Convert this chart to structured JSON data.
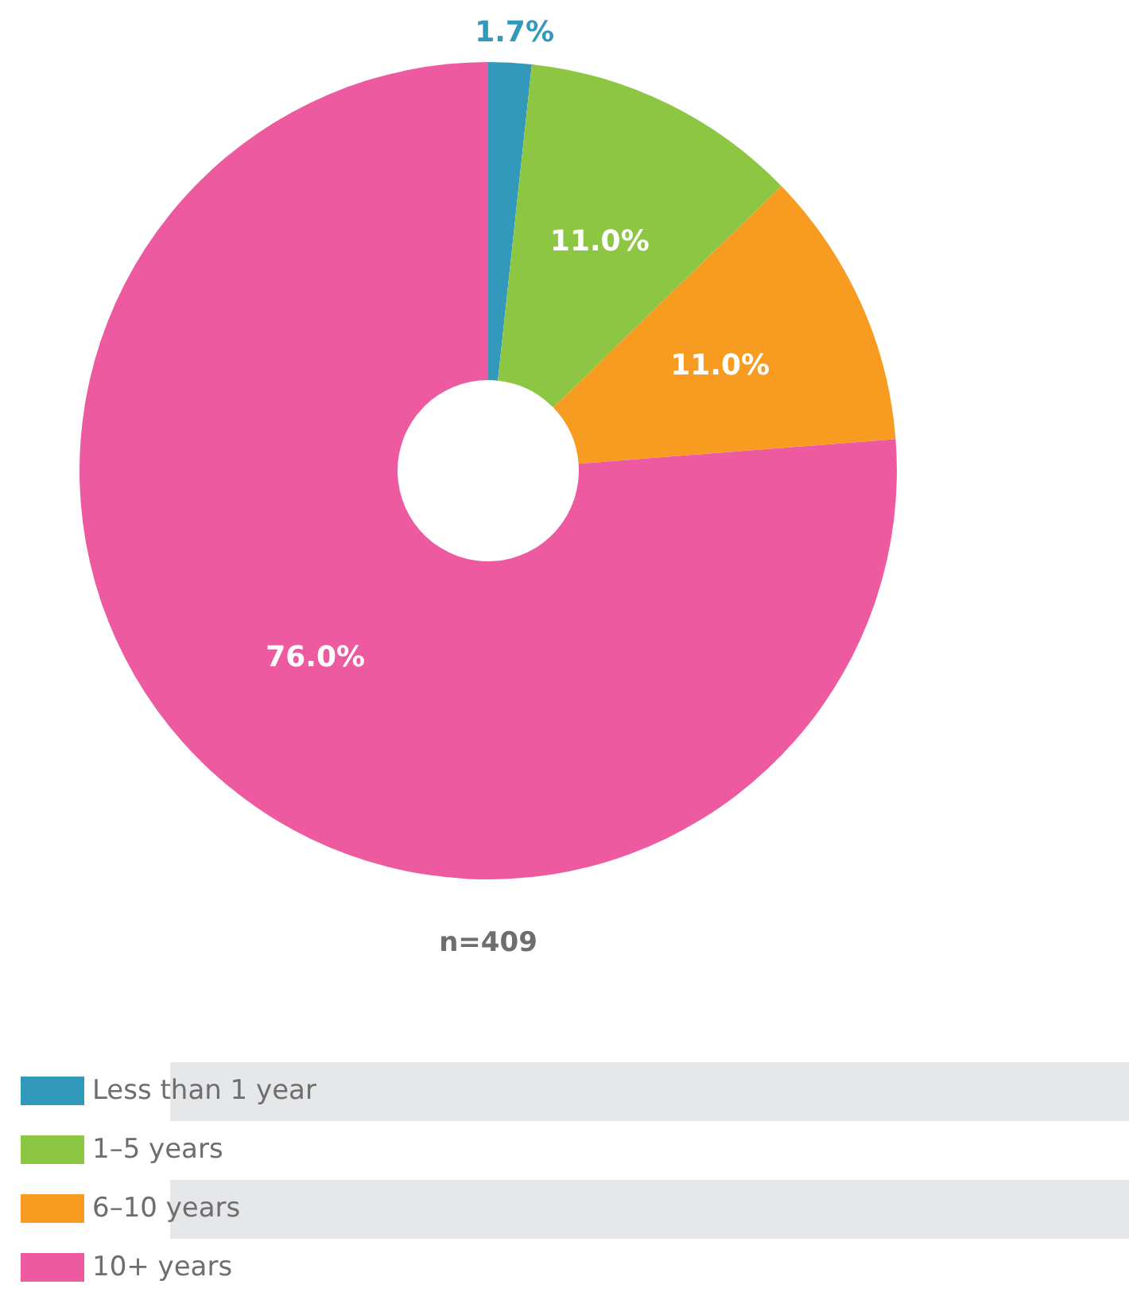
{
  "chart_data": {
    "type": "donut",
    "categories": [
      "Less than 1 year",
      "1–5 years",
      "6–10 years",
      "10+ years"
    ],
    "values": [
      1.7,
      11.0,
      11.0,
      76.0
    ],
    "colors": [
      "#3399bb",
      "#8cc642",
      "#f79c21",
      "#ee5aa0"
    ],
    "value_labels": [
      "1.7%",
      "11.0%",
      "11.0%",
      "76.0%"
    ],
    "legend": "bottom",
    "annotations": [
      "n=409"
    ]
  }
}
